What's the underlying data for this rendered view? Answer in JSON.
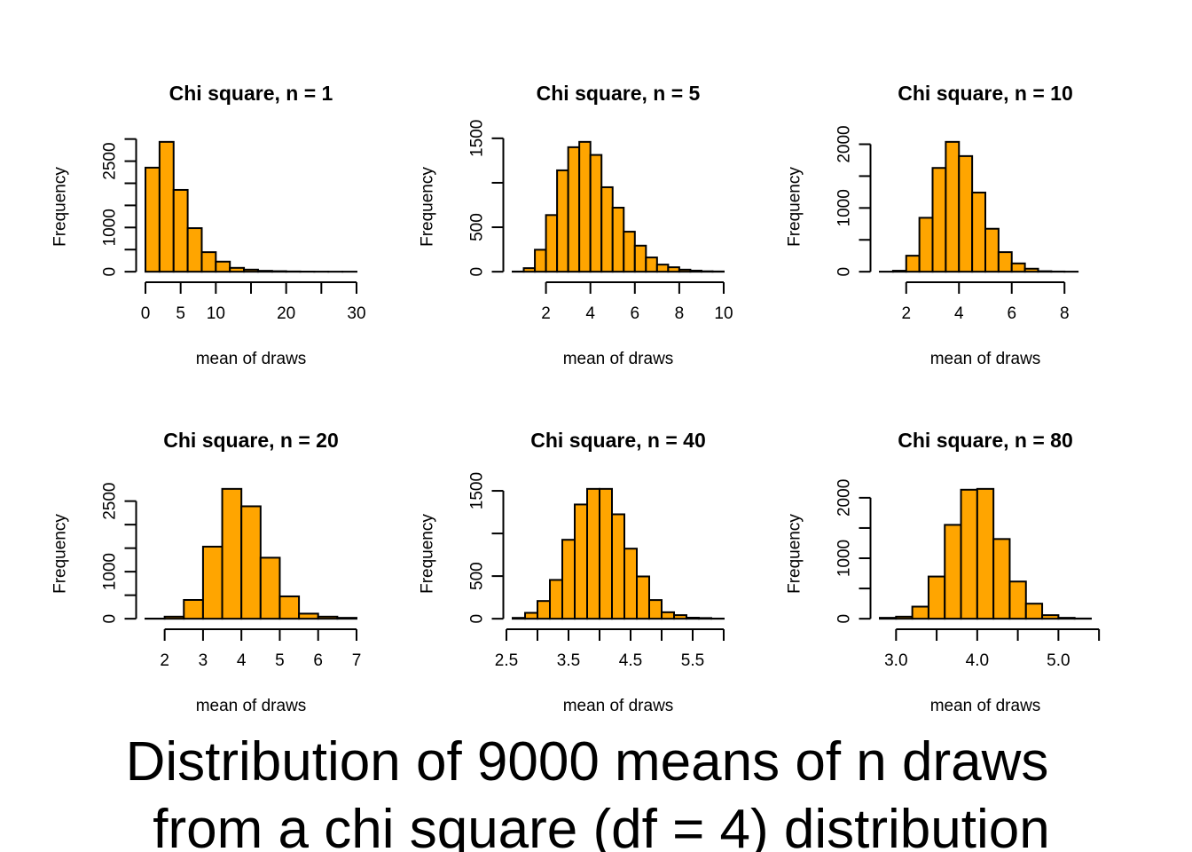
{
  "main_title": {
    "line1": "Distribution of 9000 means of n draws",
    "line2": "from a chi square (df = 4) distribution"
  },
  "colors": {
    "bar_fill": "#FFA500",
    "bar_stroke": "#000000",
    "background": "#FFFFFF"
  },
  "chart_data": [
    {
      "type": "bar",
      "title": "Chi square, n = 1",
      "xlabel": "mean of draws",
      "ylabel": "Frequency",
      "breaks": [
        0,
        2,
        4,
        6,
        8,
        10,
        12,
        14,
        16,
        18,
        20,
        22,
        24,
        26,
        28,
        30
      ],
      "values": [
        2353,
        2936,
        1850,
        985,
        442,
        228,
        87,
        47,
        20,
        12,
        6,
        3,
        2,
        1,
        1
      ],
      "x_ticks": [
        0,
        5,
        10,
        15,
        20,
        25,
        30
      ],
      "x_tick_labels": [
        "0",
        "5",
        "10",
        "",
        "20",
        "",
        "30"
      ],
      "y_ticks": [
        0,
        500,
        1000,
        1500,
        2000,
        2500,
        3000
      ],
      "y_tick_labels": [
        "0",
        "",
        "1000",
        "",
        "",
        "2500",
        ""
      ]
    },
    {
      "type": "bar",
      "title": "Chi square, n = 5",
      "xlabel": "mean of draws",
      "ylabel": "Frequency",
      "breaks": [
        0.5,
        1,
        1.5,
        2,
        2.5,
        3,
        3.5,
        4,
        4.5,
        5,
        5.5,
        6,
        6.5,
        7,
        7.5,
        8,
        8.5,
        9,
        9.5,
        10
      ],
      "values": [
        2,
        40,
        247,
        637,
        1140,
        1400,
        1460,
        1313,
        950,
        720,
        450,
        293,
        160,
        80,
        50,
        23,
        12,
        5,
        3
      ],
      "x_ticks": [
        2,
        4,
        6,
        8,
        10
      ],
      "x_tick_labels": [
        "2",
        "4",
        "6",
        "8",
        "10"
      ],
      "y_ticks": [
        0,
        500,
        1000,
        1500
      ],
      "y_tick_labels": [
        "0",
        "500",
        "",
        "1500"
      ]
    },
    {
      "type": "bar",
      "title": "Chi square, n = 10",
      "xlabel": "mean of draws",
      "ylabel": "Frequency",
      "breaks": [
        1,
        1.5,
        2,
        2.5,
        3,
        3.5,
        4,
        4.5,
        5,
        5.5,
        6,
        6.5,
        7,
        7.5,
        8,
        8.5,
        9
      ],
      "values": [
        1,
        15,
        251,
        846,
        1628,
        2037,
        1814,
        1242,
        674,
        307,
        130,
        47,
        8,
        3,
        1,
        0
      ],
      "x_ticks": [
        2,
        4,
        6,
        8
      ],
      "x_tick_labels": [
        "2",
        "4",
        "6",
        "8"
      ],
      "y_ticks": [
        0,
        500,
        1000,
        1500,
        2000
      ],
      "y_tick_labels": [
        "0",
        "",
        "1000",
        "",
        "2000"
      ]
    },
    {
      "type": "bar",
      "title": "Chi square, n = 20",
      "xlabel": "mean of draws",
      "ylabel": "Frequency",
      "breaks": [
        1.5,
        2,
        2.5,
        3,
        3.5,
        4,
        4.5,
        5,
        5.5,
        6,
        6.5,
        7
      ],
      "values": [
        3,
        44,
        399,
        1532,
        2760,
        2390,
        1297,
        475,
        108,
        44,
        19
      ],
      "x_ticks": [
        2,
        3,
        4,
        5,
        6,
        7
      ],
      "x_tick_labels": [
        "2",
        "3",
        "4",
        "5",
        "6",
        "7"
      ],
      "y_ticks": [
        0,
        500,
        1000,
        1500,
        2000,
        2500
      ],
      "y_tick_labels": [
        "0",
        "",
        "1000",
        "",
        "",
        "2500"
      ]
    },
    {
      "type": "bar",
      "title": "Chi square, n = 40",
      "xlabel": "mean of draws",
      "ylabel": "Frequency",
      "breaks": [
        2.6,
        2.8,
        3.0,
        3.2,
        3.4,
        3.6,
        3.8,
        4.0,
        4.2,
        4.4,
        4.6,
        4.8,
        5.0,
        5.2,
        5.4,
        5.6,
        5.8,
        6.0
      ],
      "values": [
        10,
        69,
        208,
        455,
        926,
        1340,
        1523,
        1523,
        1225,
        822,
        496,
        219,
        76,
        42,
        12,
        8,
        2
      ],
      "x_ticks": [
        2.5,
        3,
        3.5,
        4,
        4.5,
        5,
        5.5,
        6
      ],
      "x_tick_labels": [
        "2.5",
        "",
        "3.5",
        "",
        "4.5",
        "",
        "5.5",
        ""
      ],
      "y_ticks": [
        0,
        500,
        1000,
        1500
      ],
      "y_tick_labels": [
        "0",
        "500",
        "",
        "1500"
      ]
    },
    {
      "type": "bar",
      "title": "Chi square, n = 80",
      "xlabel": "mean of draws",
      "ylabel": "Frequency",
      "breaks": [
        2.8,
        3.0,
        3.2,
        3.4,
        3.6,
        3.8,
        4.0,
        4.2,
        4.4,
        4.6,
        4.8,
        5.0,
        5.2,
        5.4
      ],
      "values": [
        15,
        34,
        200,
        698,
        1552,
        2133,
        2147,
        1318,
        615,
        249,
        59,
        15,
        4
      ],
      "x_ticks": [
        3.0,
        3.5,
        4.0,
        4.5,
        5.0,
        5.5
      ],
      "x_tick_labels": [
        "3.0",
        "",
        "4.0",
        "",
        "5.0",
        ""
      ],
      "y_ticks": [
        0,
        500,
        1000,
        1500,
        2000
      ],
      "y_tick_labels": [
        "0",
        "",
        "1000",
        "",
        "2000"
      ]
    }
  ]
}
